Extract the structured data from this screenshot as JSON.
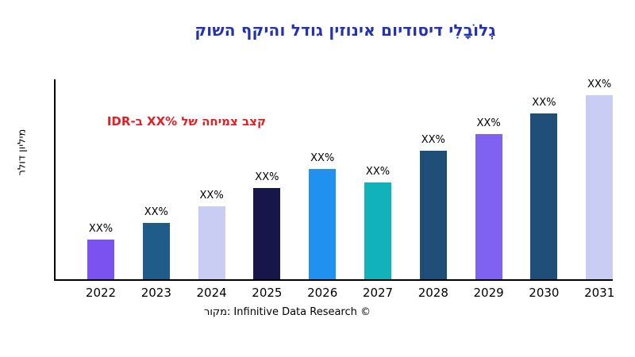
{
  "title": {
    "text": "גְלוֹבָלִי דיסודיום אינוזין גודל והיקף השוק",
    "color": "#2433ad"
  },
  "annotation": {
    "text": "קצב צמיחה של ‎XX%‎ ב-IDR",
    "color": "#e51e25"
  },
  "source": {
    "text": "מקור: Infinitive Data Research ©"
  },
  "chart_data": {
    "type": "bar",
    "title": "גְלוֹבָלִי דיסודיום אינוזין גודל והיקף השוק",
    "xlabel": "",
    "ylabel": "מיליון דולר",
    "categories": [
      "2022",
      "2023",
      "2024",
      "2025",
      "2026",
      "2027",
      "2028",
      "2029",
      "2030",
      "2031"
    ],
    "values": [
      21.5,
      30.5,
      39.5,
      49.5,
      60,
      52.5,
      70,
      79,
      90,
      100
    ],
    "value_labels": [
      "XX%",
      "XX%",
      "XX%",
      "XX%",
      "XX%",
      "XX%",
      "XX%",
      "XX%",
      "XX%",
      "XX%"
    ],
    "bar_colors": [
      "#7b52f0",
      "#1f5c8a",
      "#c9cdf3",
      "#16164a",
      "#2191f0",
      "#12b2ba",
      "#1f4e79",
      "#7f62f2",
      "#1f4e79",
      "#c9cdf3"
    ],
    "ylim": [
      0,
      100
    ],
    "grid": false,
    "legend": false,
    "annotation": "קצב צמיחה של XX% ב-IDR",
    "source_note": "מקור: Infinitive Data Research ©"
  }
}
